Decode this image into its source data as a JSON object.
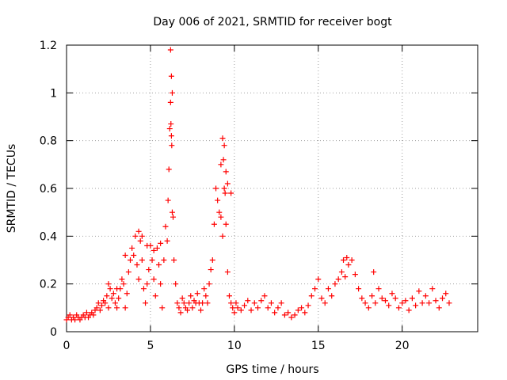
{
  "chart_data": {
    "type": "scatter",
    "title": "Day 006 of 2021, SRMTID for receiver bogt",
    "xlabel": "GPS time / hours",
    "ylabel": "SRMTID / TECUs",
    "xlim": [
      0,
      24.5
    ],
    "ylim": [
      0,
      1.2
    ],
    "xticks": [
      0,
      5,
      10,
      15,
      20
    ],
    "xtick_labels": [
      "0",
      "5",
      "10",
      "15",
      "20"
    ],
    "yticks": [
      0,
      0.2,
      0.4,
      0.6,
      0.8,
      1,
      1.2
    ],
    "ytick_labels": [
      "0",
      "0.2",
      "0.4",
      "0.6",
      "0.8",
      "1",
      "1.2"
    ],
    "grid": true,
    "marker": "+",
    "color": "#ff0000",
    "series": [
      {
        "name": "SRMTID",
        "x": [
          0.0,
          0.1,
          0.2,
          0.3,
          0.4,
          0.5,
          0.6,
          0.7,
          0.8,
          0.9,
          1.0,
          1.1,
          1.2,
          1.3,
          1.4,
          1.5,
          1.6,
          1.7,
          1.8,
          1.9,
          2.0,
          2.1,
          2.2,
          2.3,
          2.4,
          2.5,
          2.6,
          2.7,
          2.8,
          2.9,
          3.0,
          3.1,
          3.2,
          3.3,
          3.4,
          3.5,
          3.6,
          3.7,
          3.8,
          3.9,
          4.0,
          4.1,
          4.2,
          4.3,
          4.4,
          4.5,
          4.6,
          4.7,
          4.8,
          4.9,
          5.0,
          5.1,
          5.2,
          5.3,
          5.4,
          5.5,
          5.6,
          5.7,
          5.8,
          5.9,
          6.0,
          6.05,
          6.1,
          6.15,
          6.2,
          6.25,
          6.3,
          6.35,
          6.4,
          6.5,
          6.6,
          6.7,
          6.8,
          6.9,
          7.0,
          7.1,
          7.2,
          7.3,
          7.4,
          7.5,
          7.6,
          7.7,
          7.8,
          7.9,
          8.0,
          8.1,
          8.2,
          8.3,
          8.4,
          8.5,
          8.6,
          8.7,
          8.8,
          8.9,
          9.0,
          9.1,
          9.2,
          9.3,
          9.4,
          9.5,
          9.6,
          9.7,
          9.8,
          9.9,
          10.0,
          10.1,
          10.2,
          10.4,
          10.6,
          10.8,
          11.0,
          11.2,
          11.4,
          11.6,
          11.8,
          12.0,
          12.2,
          12.4,
          12.6,
          12.8,
          13.0,
          13.2,
          13.4,
          13.6,
          13.8,
          14.0,
          14.2,
          14.4,
          14.6,
          14.8,
          15.0,
          15.2,
          15.4,
          15.6,
          15.8,
          16.0,
          16.2,
          16.4,
          16.6,
          16.8,
          17.0,
          17.2,
          17.4,
          17.6,
          17.8,
          18.0,
          18.2,
          18.4,
          18.6,
          18.8,
          19.0,
          19.2,
          19.4,
          19.6,
          19.8,
          20.0,
          20.2,
          20.4,
          20.6,
          20.8,
          21.0,
          21.2,
          21.4,
          21.6,
          21.8,
          22.0,
          22.2,
          22.4,
          22.6,
          22.8,
          4.3,
          4.5,
          4.8,
          5.2,
          5.6,
          6.2,
          6.25,
          6.3,
          6.22,
          6.27,
          9.2,
          9.3,
          9.4,
          9.5,
          9.6,
          9.8,
          9.35,
          9.45,
          3.0,
          3.5,
          16.5,
          16.7,
          18.3,
          2.5
        ],
        "y": [
          0.05,
          0.06,
          0.07,
          0.05,
          0.06,
          0.05,
          0.07,
          0.06,
          0.05,
          0.06,
          0.07,
          0.06,
          0.08,
          0.06,
          0.07,
          0.08,
          0.07,
          0.09,
          0.1,
          0.12,
          0.09,
          0.11,
          0.13,
          0.12,
          0.15,
          0.2,
          0.18,
          0.14,
          0.16,
          0.12,
          0.1,
          0.14,
          0.18,
          0.22,
          0.2,
          0.1,
          0.16,
          0.25,
          0.3,
          0.35,
          0.32,
          0.4,
          0.28,
          0.22,
          0.38,
          0.3,
          0.18,
          0.12,
          0.2,
          0.26,
          0.36,
          0.3,
          0.22,
          0.15,
          0.35,
          0.28,
          0.2,
          0.1,
          0.3,
          0.44,
          0.38,
          0.55,
          0.68,
          0.85,
          0.96,
          0.82,
          0.5,
          0.48,
          0.3,
          0.2,
          0.12,
          0.1,
          0.08,
          0.14,
          0.12,
          0.1,
          0.09,
          0.12,
          0.15,
          0.1,
          0.13,
          0.12,
          0.16,
          0.12,
          0.09,
          0.12,
          0.18,
          0.15,
          0.12,
          0.2,
          0.26,
          0.3,
          0.45,
          0.6,
          0.55,
          0.5,
          0.48,
          0.4,
          0.6,
          0.45,
          0.25,
          0.15,
          0.12,
          0.1,
          0.08,
          0.12,
          0.1,
          0.09,
          0.11,
          0.13,
          0.09,
          0.12,
          0.1,
          0.13,
          0.15,
          0.1,
          0.12,
          0.08,
          0.1,
          0.12,
          0.07,
          0.08,
          0.06,
          0.07,
          0.09,
          0.1,
          0.08,
          0.11,
          0.15,
          0.18,
          0.22,
          0.14,
          0.12,
          0.18,
          0.15,
          0.2,
          0.22,
          0.25,
          0.23,
          0.28,
          0.3,
          0.24,
          0.18,
          0.14,
          0.12,
          0.1,
          0.15,
          0.12,
          0.18,
          0.14,
          0.13,
          0.11,
          0.16,
          0.14,
          0.1,
          0.12,
          0.13,
          0.09,
          0.14,
          0.11,
          0.17,
          0.12,
          0.15,
          0.12,
          0.18,
          0.13,
          0.1,
          0.14,
          0.16,
          0.12,
          0.42,
          0.4,
          0.36,
          0.34,
          0.37,
          1.18,
          1.07,
          1.0,
          0.87,
          0.78,
          0.7,
          0.81,
          0.78,
          0.67,
          0.62,
          0.58,
          0.72,
          0.58,
          0.18,
          0.32,
          0.3,
          0.31,
          0.25,
          0.1
        ]
      }
    ]
  }
}
